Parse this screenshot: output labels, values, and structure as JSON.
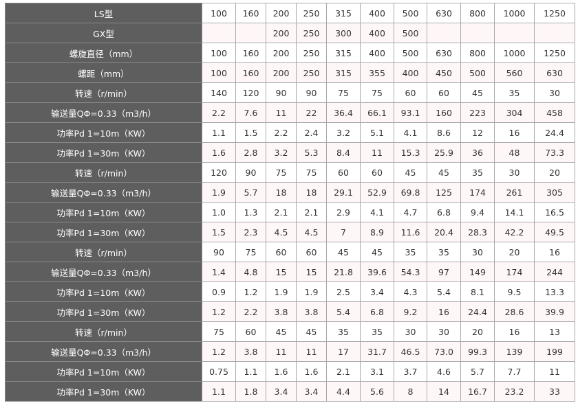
{
  "table": {
    "rows": [
      {
        "label": "LS型",
        "values": [
          "100",
          "160",
          "200",
          "250",
          "315",
          "400",
          "500",
          "630",
          "800",
          "1000",
          "1250"
        ]
      },
      {
        "label": "GX型",
        "values": [
          "",
          "",
          "200",
          "250",
          "300",
          "400",
          "500",
          "",
          "",
          "",
          ""
        ]
      },
      {
        "label": "螺旋直径（mm）",
        "values": [
          "100",
          "160",
          "200",
          "250",
          "315",
          "400",
          "500",
          "630",
          "800",
          "1000",
          "1250"
        ]
      },
      {
        "label": "螺距（mm）",
        "values": [
          "100",
          "160",
          "200",
          "250",
          "315",
          "355",
          "400",
          "450",
          "500",
          "560",
          "630"
        ]
      },
      {
        "label": "转速（r/min）",
        "values": [
          "140",
          "120",
          "90",
          "90",
          "75",
          "75",
          "60",
          "60",
          "45",
          "35",
          "30"
        ]
      },
      {
        "label": "输送量QΦ=0.33（m3/h）",
        "values": [
          "2.2",
          "7.6",
          "11",
          "22",
          "36.4",
          "66.1",
          "93.1",
          "160",
          "223",
          "304",
          "458"
        ]
      },
      {
        "label": "功率Pd 1=10m（KW）",
        "values": [
          "1.1",
          "1.5",
          "2.2",
          "2.4",
          "3.2",
          "5.1",
          "4.1",
          "8.6",
          "12",
          "16",
          "24.4"
        ]
      },
      {
        "label": "功率Pd 1=30m（KW）",
        "values": [
          "1.6",
          "2.8",
          "3.2",
          "5.3",
          "8.4",
          "11",
          "15.3",
          "25.9",
          "36",
          "48",
          "73.3"
        ]
      },
      {
        "label": "转速（r/min）",
        "values": [
          "120",
          "90",
          "75",
          "75",
          "60",
          "60",
          "45",
          "45",
          "35",
          "30",
          "20"
        ]
      },
      {
        "label": "输送量QΦ=0.33（m3/h）",
        "values": [
          "1.9",
          "5.7",
          "18",
          "18",
          "29.1",
          "52.9",
          "69.8",
          "125",
          "174",
          "261",
          "305"
        ]
      },
      {
        "label": "功率Pd 1=10m（KW）",
        "values": [
          "1.0",
          "1.3",
          "2.1",
          "2.1",
          "2.9",
          "4.1",
          "4.7",
          "6.8",
          "9.4",
          "14.1",
          "16.5"
        ]
      },
      {
        "label": "功率Pd 1=30m（KW）",
        "values": [
          "1.5",
          "2.3",
          "4.5",
          "4.5",
          "7",
          "8.9",
          "11.6",
          "20.4",
          "28.3",
          "42.2",
          "49.5"
        ]
      },
      {
        "label": "转速（r/min）",
        "values": [
          "90",
          "75",
          "60",
          "60",
          "45",
          "45",
          "35",
          "35",
          "30",
          "20",
          "16"
        ]
      },
      {
        "label": "输送量QΦ=0.33（m3/h）",
        "values": [
          "1.4",
          "4.8",
          "15",
          "15",
          "21.8",
          "39.6",
          "54.3",
          "97",
          "149",
          "174",
          "244"
        ]
      },
      {
        "label": "功率Pd 1=10m（KW）",
        "values": [
          "0.9",
          "1.2",
          "1.9",
          "1.9",
          "2.5",
          "3.4",
          "4.3",
          "5.4",
          "8.1",
          "9.5",
          "13.3"
        ]
      },
      {
        "label": "功率Pd 1=30m（KW）",
        "values": [
          "1.2",
          "2.2",
          "3.8",
          "3.8",
          "5.4",
          "6.8",
          "9.2",
          "16",
          "24.4",
          "28.6",
          "39.9"
        ]
      },
      {
        "label": "转速（r/min）",
        "values": [
          "75",
          "60",
          "45",
          "45",
          "35",
          "35",
          "30",
          "30",
          "20",
          "16",
          "13"
        ]
      },
      {
        "label": "输送量QΦ=0.33（m3/h）",
        "values": [
          "1.2",
          "3.8",
          "11",
          "11",
          "17",
          "31.7",
          "46.5",
          "73.0",
          "99.3",
          "139",
          "199"
        ]
      },
      {
        "label": "功率Pd 1=10m（KW）",
        "values": [
          "0.75",
          "1.1",
          "1.6",
          "1.6",
          "2.1",
          "3.1",
          "3.7",
          "4.6",
          "5.7",
          "7.7",
          "11"
        ]
      },
      {
        "label": "功率Pd 1=30m（KW）",
        "values": [
          "1.1",
          "1.8",
          "3.4",
          "3.4",
          "4.4",
          "5.6",
          "8",
          "14",
          "16.7",
          "23.2",
          "33"
        ]
      }
    ]
  }
}
